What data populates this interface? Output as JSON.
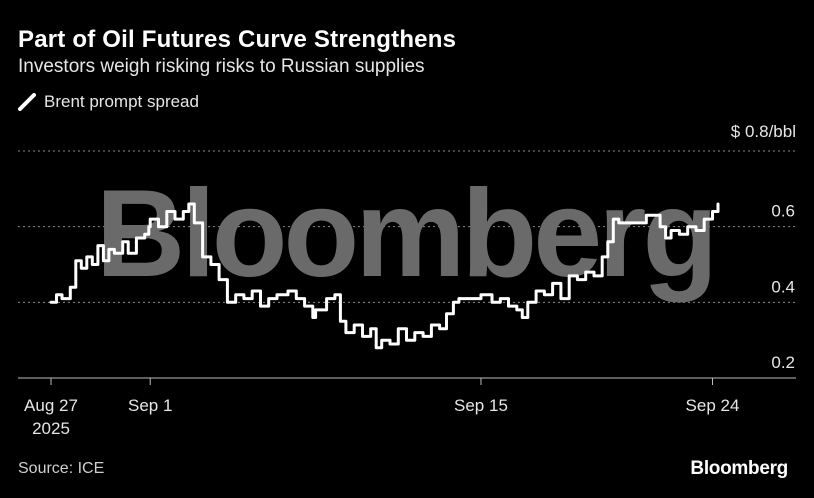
{
  "title": "Part of Oil Futures Curve Strengthens",
  "subtitle": "Investors weigh risking risks to Russian supplies",
  "source": "Source: ICE",
  "brand": "Bloomberg",
  "watermark": "Bloomberg",
  "colors": {
    "background": "#000000",
    "line": "#ffffff",
    "grid": "#8a8a8a",
    "watermark": "#6a6a6a"
  },
  "chart_data": {
    "type": "line",
    "ylabel": "$ 0.8/bbl",
    "ylim": [
      0.2,
      0.8
    ],
    "yticks": [
      {
        "value": 0.2,
        "label": "0.2"
      },
      {
        "value": 0.4,
        "label": "0.4"
      },
      {
        "value": 0.6,
        "label": "0.6"
      },
      {
        "value": 0.8,
        "label": "$ 0.8/bbl"
      }
    ],
    "xlim": [
      "2025-08-27",
      "2025-09-24"
    ],
    "xticks": [
      {
        "date": "2025-08-27",
        "label": "Aug 27",
        "label2": "2025"
      },
      {
        "date": "2025-09-01",
        "label": "Sep 1"
      },
      {
        "date": "2025-09-15",
        "label": "Sep 15"
      },
      {
        "date": "2025-09-24",
        "label": "Sep 24"
      }
    ],
    "grid": true,
    "legend": "top-left",
    "series": [
      {
        "name": "Brent prompt spread",
        "color": "#ffffff",
        "points": [
          [
            "2025-08-27T00:00",
            0.4
          ],
          [
            "2025-08-27T04:00",
            0.42
          ],
          [
            "2025-08-27T08:00",
            0.41
          ],
          [
            "2025-08-27T14:00",
            0.44
          ],
          [
            "2025-08-27T18:00",
            0.51
          ],
          [
            "2025-08-27T22:00",
            0.49
          ],
          [
            "2025-08-28T02:00",
            0.52
          ],
          [
            "2025-08-28T06:00",
            0.5
          ],
          [
            "2025-08-28T10:00",
            0.55
          ],
          [
            "2025-08-28T14:00",
            0.51
          ],
          [
            "2025-08-28T18:00",
            0.54
          ],
          [
            "2025-08-28T22:00",
            0.53
          ],
          [
            "2025-08-29T04:00",
            0.56
          ],
          [
            "2025-08-29T08:00",
            0.53
          ],
          [
            "2025-08-29T14:00",
            0.57
          ],
          [
            "2025-08-29T20:00",
            0.58
          ],
          [
            "2025-08-29T23:00",
            0.6
          ],
          [
            "2025-09-01T00:00",
            0.62
          ],
          [
            "2025-09-01T06:00",
            0.6
          ],
          [
            "2025-09-01T12:00",
            0.64
          ],
          [
            "2025-09-01T18:00",
            0.62
          ],
          [
            "2025-09-02T00:00",
            0.64
          ],
          [
            "2025-09-02T04:00",
            0.66
          ],
          [
            "2025-09-02T08:00",
            0.61
          ],
          [
            "2025-09-02T14:00",
            0.52
          ],
          [
            "2025-09-02T20:00",
            0.5
          ],
          [
            "2025-09-03T02:00",
            0.46
          ],
          [
            "2025-09-03T08:00",
            0.4
          ],
          [
            "2025-09-03T14:00",
            0.42
          ],
          [
            "2025-09-03T20:00",
            0.41
          ],
          [
            "2025-09-04T02:00",
            0.43
          ],
          [
            "2025-09-04T08:00",
            0.39
          ],
          [
            "2025-09-04T14:00",
            0.41
          ],
          [
            "2025-09-04T20:00",
            0.42
          ],
          [
            "2025-09-05T04:00",
            0.43
          ],
          [
            "2025-09-05T10:00",
            0.41
          ],
          [
            "2025-09-05T16:00",
            0.39
          ],
          [
            "2025-09-05T22:00",
            0.36
          ],
          [
            "2025-09-08T00:00",
            0.38
          ],
          [
            "2025-09-08T08:00",
            0.41
          ],
          [
            "2025-09-08T14:00",
            0.42
          ],
          [
            "2025-09-08T18:00",
            0.35
          ],
          [
            "2025-09-08T22:00",
            0.32
          ],
          [
            "2025-09-09T04:00",
            0.34
          ],
          [
            "2025-09-09T10:00",
            0.31
          ],
          [
            "2025-09-09T16:00",
            0.33
          ],
          [
            "2025-09-09T20:00",
            0.28
          ],
          [
            "2025-09-10T00:00",
            0.3
          ],
          [
            "2025-09-10T06:00",
            0.29
          ],
          [
            "2025-09-10T12:00",
            0.33
          ],
          [
            "2025-09-10T18:00",
            0.3
          ],
          [
            "2025-09-11T00:00",
            0.32
          ],
          [
            "2025-09-11T06:00",
            0.31
          ],
          [
            "2025-09-11T12:00",
            0.34
          ],
          [
            "2025-09-11T18:00",
            0.33
          ],
          [
            "2025-09-11T23:00",
            0.37
          ],
          [
            "2025-09-12T04:00",
            0.4
          ],
          [
            "2025-09-12T08:00",
            0.41
          ],
          [
            "2025-09-15T00:00",
            0.42
          ],
          [
            "2025-09-15T08:00",
            0.4
          ],
          [
            "2025-09-15T14:00",
            0.41
          ],
          [
            "2025-09-15T20:00",
            0.39
          ],
          [
            "2025-09-16T02:00",
            0.38
          ],
          [
            "2025-09-16T06:00",
            0.36
          ],
          [
            "2025-09-16T10:00",
            0.4
          ],
          [
            "2025-09-16T16:00",
            0.43
          ],
          [
            "2025-09-16T22:00",
            0.42
          ],
          [
            "2025-09-17T04:00",
            0.45
          ],
          [
            "2025-09-17T10:00",
            0.41
          ],
          [
            "2025-09-17T16:00",
            0.47
          ],
          [
            "2025-09-17T22:00",
            0.46
          ],
          [
            "2025-09-18T04:00",
            0.48
          ],
          [
            "2025-09-18T10:00",
            0.47
          ],
          [
            "2025-09-18T16:00",
            0.52
          ],
          [
            "2025-09-18T20:00",
            0.56
          ],
          [
            "2025-09-19T00:00",
            0.62
          ],
          [
            "2025-09-19T04:00",
            0.61
          ],
          [
            "2025-09-22T00:00",
            0.63
          ],
          [
            "2025-09-22T06:00",
            0.63
          ],
          [
            "2025-09-22T10:00",
            0.6
          ],
          [
            "2025-09-22T14:00",
            0.57
          ],
          [
            "2025-09-22T18:00",
            0.59
          ],
          [
            "2025-09-23T00:00",
            0.58
          ],
          [
            "2025-09-23T06:00",
            0.6
          ],
          [
            "2025-09-23T12:00",
            0.59
          ],
          [
            "2025-09-23T18:00",
            0.62
          ],
          [
            "2025-09-24T00:00",
            0.64
          ],
          [
            "2025-09-24T04:00",
            0.66
          ]
        ]
      }
    ]
  }
}
